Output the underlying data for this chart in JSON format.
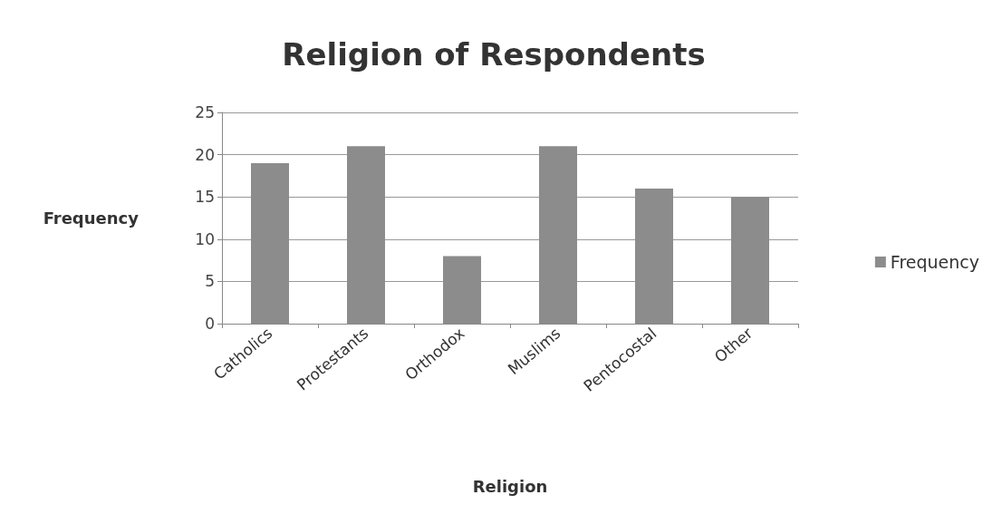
{
  "chart_data": {
    "type": "bar",
    "title": "Religion of Respondents",
    "xlabel": "Religion",
    "ylabel": "Frequency",
    "categories": [
      "Catholics",
      "Protestants",
      "Orthodox",
      "Muslims",
      "Pentocostal",
      "Other"
    ],
    "series": [
      {
        "name": "Frequency",
        "color": "#8c8c8c",
        "values": [
          19,
          21,
          8,
          21,
          16,
          15
        ]
      }
    ],
    "ylim": [
      0,
      25
    ],
    "yticks": [
      0,
      5,
      10,
      15,
      20,
      25
    ],
    "grid": "y",
    "legend": "right"
  }
}
